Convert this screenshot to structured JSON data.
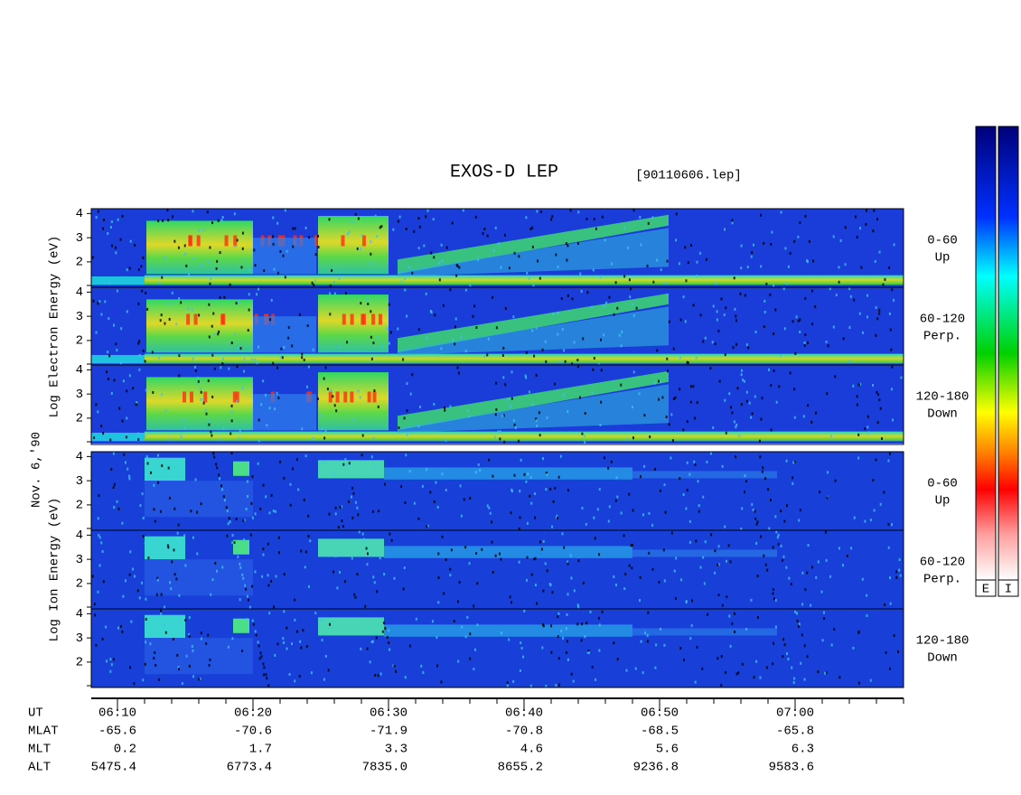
{
  "title": "EXOS-D LEP",
  "file": "[90110606.lep]",
  "date": "Nov. 6,'90",
  "ylim": [
    0.95,
    4.2
  ],
  "yticks": [
    2,
    3,
    4
  ],
  "groups": [
    {
      "ylabel": "Log  Electron  Energy  (eV)",
      "panels": [
        [
          "0-60",
          "Up"
        ],
        [
          "60-120",
          "Perp."
        ],
        [
          "120-180",
          "Down"
        ]
      ]
    },
    {
      "ylabel": "Log  Ion  Energy  (eV)",
      "panels": [
        [
          "0-60",
          "Up"
        ],
        [
          "60-120",
          "Perp."
        ],
        [
          "120-180",
          "Down"
        ]
      ]
    }
  ],
  "axis_table": [
    {
      "name": "UT",
      "values": [
        "06:10",
        "06:20",
        "06:30",
        "06:40",
        "06:50",
        "07:00"
      ]
    },
    {
      "name": "MLAT",
      "values": [
        "-65.6",
        "-70.6",
        "-71.9",
        "-70.8",
        "-68.5",
        "-65.8"
      ]
    },
    {
      "name": "MLT",
      "values": [
        "0.2",
        "1.7",
        "3.3",
        "4.6",
        "5.6",
        "6.3"
      ]
    },
    {
      "name": "ALT",
      "values": [
        "5475.4",
        "6773.4",
        "7835.0",
        "8655.2",
        "9236.8",
        "9583.6"
      ]
    }
  ],
  "colorbar": [
    "E",
    "I"
  ]
}
